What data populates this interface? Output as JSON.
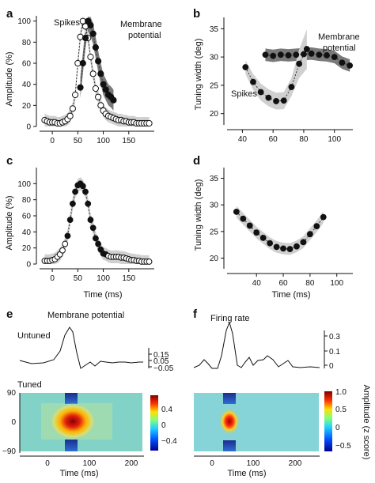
{
  "panels": {
    "a": {
      "letter": "a",
      "ylabel": "Amplitude (%)",
      "xlim": [
        -25,
        200
      ],
      "ylim": [
        0,
        105
      ],
      "xticks": [
        0,
        50,
        100,
        150
      ],
      "yticks": [
        0,
        20,
        40,
        60,
        80,
        100
      ],
      "ann": {
        "spikes": "Spikes",
        "mp1": "Membrane",
        "mp2": "potential"
      }
    },
    "b": {
      "letter": "b",
      "ylabel": "Tuning width (deg)",
      "xlim": [
        30,
        112
      ],
      "ylim": [
        18,
        37
      ],
      "xticks": [
        40,
        60,
        80,
        100
      ],
      "yticks": [
        20,
        25,
        30,
        35
      ],
      "ann": {
        "spikes": "Spikes",
        "mp1": "Membrane",
        "mp2": "potential"
      }
    },
    "c": {
      "letter": "c",
      "ylabel": "Amplitude (%)",
      "xlabel": "Time (ms)",
      "xlim": [
        -25,
        200
      ],
      "ylim": [
        0,
        120
      ],
      "xticks": [
        0,
        50,
        100,
        150
      ],
      "yticks": [
        0,
        20,
        40,
        60,
        80,
        100
      ]
    },
    "d": {
      "letter": "d",
      "ylabel": "Tuning width (deg)",
      "xlabel": "Time (ms)",
      "xlim": [
        18,
        112
      ],
      "ylim": [
        18,
        37
      ],
      "xticks": [
        40,
        60,
        80,
        100
      ],
      "yticks": [
        20,
        25,
        30,
        35
      ]
    },
    "e": {
      "letter": "e",
      "title": "Membrane potential",
      "untuned_label": "Untuned",
      "tuned_label": "Tuned",
      "trace_yticks": [
        "0.15",
        "0.05",
        "−0.05"
      ],
      "map_yticks": [
        "90",
        "0",
        "−90"
      ],
      "xticks": [
        "0",
        "100",
        "200"
      ],
      "xlabel": "Time (ms)",
      "cbar_ticks": [
        "0.4",
        "0",
        "−0.4"
      ]
    },
    "f": {
      "letter": "f",
      "title": "Firing rate",
      "trace_yticks": [
        "0.3",
        "0.1",
        "0"
      ],
      "xticks": [
        "0",
        "100",
        "200"
      ],
      "xlabel": "Time (ms)",
      "cbar_ticks": [
        "1.0",
        "0.5",
        "0",
        "−0.5"
      ],
      "cbar_label": "Amplitude (z score)"
    }
  },
  "colors": {
    "dark_band": "#7a7a7a",
    "light_band": "#d0d0d0",
    "point": "#111111"
  },
  "chart_data": [
    {
      "panel": "a",
      "type": "scatter",
      "series": [
        {
          "name": "Spikes",
          "marker": "open",
          "x": [
            -15,
            -10,
            -5,
            0,
            5,
            10,
            15,
            20,
            25,
            30,
            35,
            40,
            45,
            50,
            55,
            60,
            65,
            70,
            75,
            80,
            85,
            90,
            95,
            100,
            105,
            110,
            115,
            120,
            125,
            130,
            135,
            140,
            145,
            150,
            155,
            160,
            165,
            170,
            175,
            180,
            185,
            190
          ],
          "y": [
            6,
            5,
            4,
            4,
            4,
            3,
            3,
            4,
            5,
            7,
            10,
            17,
            30,
            60,
            85,
            100,
            95,
            84,
            66,
            50,
            36,
            28,
            20,
            15,
            12,
            10,
            9,
            8,
            7,
            6,
            6,
            5,
            5,
            4,
            4,
            4,
            3,
            3,
            3,
            3,
            3,
            3
          ]
        },
        {
          "name": "Membrane potential",
          "marker": "filled",
          "x": [
            55,
            60,
            65,
            70,
            75,
            80,
            85,
            90,
            95,
            100,
            105,
            110,
            115,
            120
          ],
          "y": [
            37,
            60,
            84,
            100,
            96,
            88,
            75,
            62,
            50,
            40,
            35,
            30,
            28,
            25
          ]
        }
      ]
    },
    {
      "panel": "b",
      "type": "line",
      "series": [
        {
          "name": "Spikes",
          "x": [
            42,
            47,
            52,
            57,
            62,
            67,
            72,
            77,
            82
          ],
          "y": [
            28.2,
            25.6,
            23.8,
            22.8,
            22.2,
            22.3,
            24.7,
            28.8,
            31.4
          ]
        },
        {
          "name": "Membrane potential",
          "x": [
            55,
            60,
            65,
            70,
            75,
            80,
            85,
            90,
            95,
            100,
            105,
            110
          ],
          "y": [
            30.4,
            30.2,
            30.4,
            30.3,
            30.4,
            30.5,
            30.6,
            30.4,
            30.3,
            30.0,
            29.0,
            28.5
          ]
        }
      ]
    },
    {
      "panel": "c",
      "type": "scatter",
      "x": [
        -15,
        -10,
        -5,
        0,
        5,
        10,
        15,
        20,
        25,
        30,
        35,
        40,
        45,
        50,
        55,
        60,
        65,
        70,
        75,
        80,
        85,
        90,
        95,
        100,
        105,
        110,
        115,
        120,
        125,
        130,
        135,
        140,
        145,
        150,
        155,
        160,
        165,
        170,
        175,
        180,
        185,
        190
      ],
      "y": [
        4,
        4,
        4,
        5,
        6,
        9,
        12,
        17,
        25,
        35,
        55,
        75,
        90,
        98,
        100,
        97,
        90,
        75,
        55,
        45,
        32,
        25,
        18,
        13,
        12,
        10,
        9,
        9,
        9,
        9,
        8,
        8,
        7,
        6,
        5,
        5,
        4,
        4,
        3,
        3,
        3,
        3
      ],
      "open_x": [
        -15,
        -10,
        -5,
        0,
        5,
        10,
        15,
        20,
        25,
        110,
        115,
        120,
        125,
        130,
        135,
        140,
        145,
        150,
        155,
        160,
        165,
        170,
        175,
        180,
        185,
        190
      ]
    },
    {
      "panel": "d",
      "type": "line",
      "x": [
        25,
        30,
        35,
        40,
        45,
        50,
        55,
        60,
        65,
        70,
        75,
        80,
        85,
        90
      ],
      "y": [
        28.7,
        27.4,
        26.1,
        24.8,
        23.8,
        22.8,
        22.1,
        21.8,
        21.7,
        22.2,
        23.0,
        24.5,
        26.0,
        27.7
      ]
    }
  ]
}
